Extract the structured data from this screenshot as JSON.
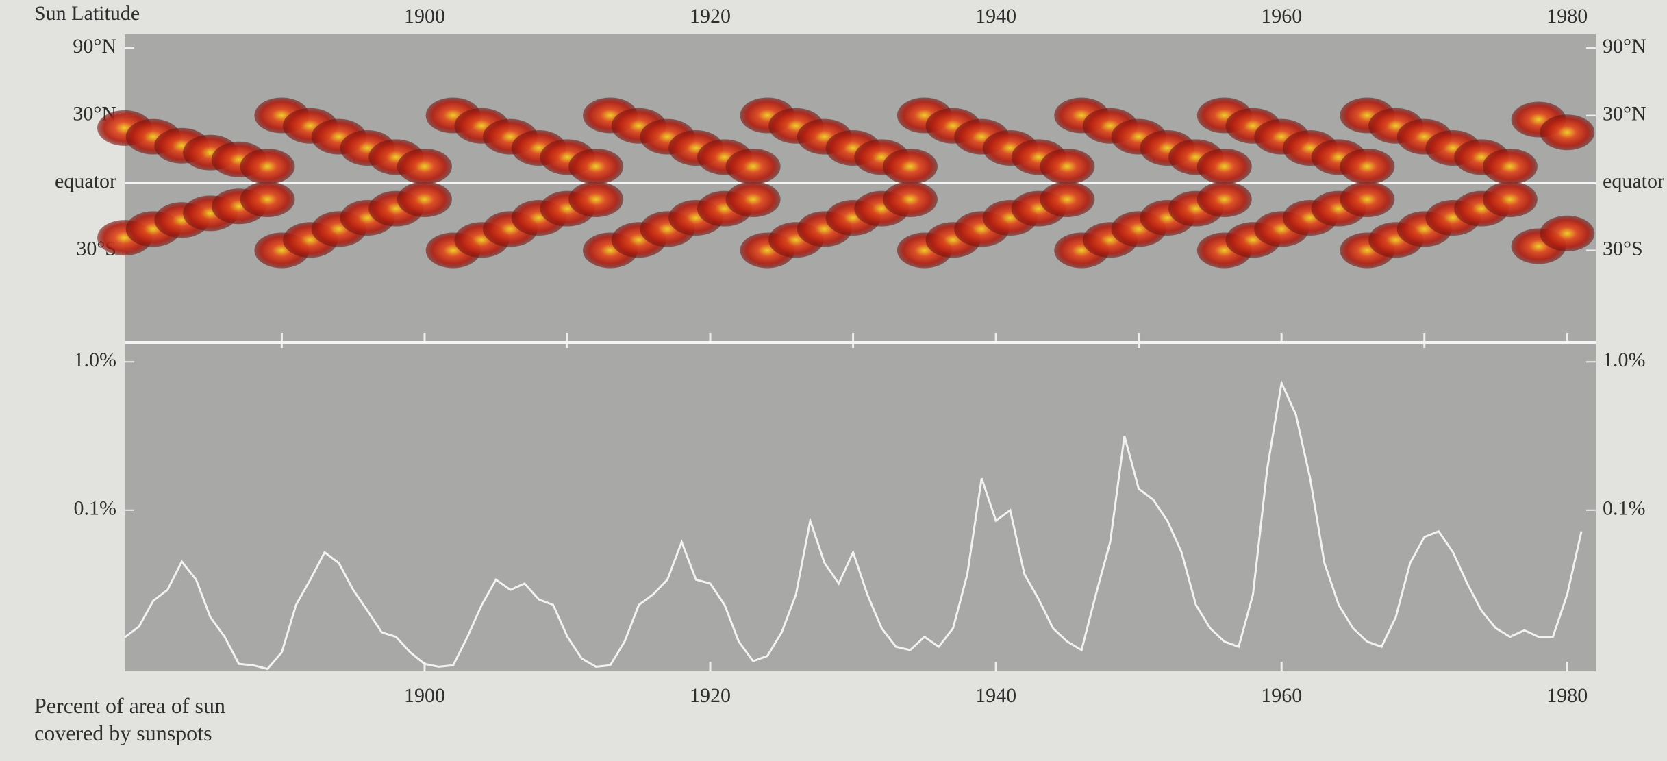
{
  "chart_data": [
    {
      "type": "scatter",
      "title": "Sun Latitude",
      "yscale": "sine",
      "color": "#c8321a",
      "xlim": [
        1879,
        1982
      ],
      "xticks": [
        1900,
        1920,
        1940,
        1960,
        1980
      ],
      "xticks_minor": [
        1890,
        1910,
        1930,
        1950,
        1970
      ],
      "ylim": [
        -90,
        90
      ],
      "yticks": [
        {
          "value": 90,
          "label": "90°N"
        },
        {
          "value": 30,
          "label": "30°N"
        },
        {
          "value": 0,
          "label": "equator"
        },
        {
          "value": -30,
          "label": "30°S"
        }
      ],
      "x": [
        1879,
        1881,
        1883,
        1885,
        1887,
        1889,
        1879,
        1881,
        1883,
        1885,
        1887,
        1889,
        1890,
        1892,
        1894,
        1896,
        1898,
        1900,
        1890,
        1892,
        1894,
        1896,
        1898,
        1900,
        1902,
        1904,
        1906,
        1908,
        1910,
        1912,
        1902,
        1904,
        1906,
        1908,
        1910,
        1912,
        1913,
        1915,
        1917,
        1919,
        1921,
        1923,
        1913,
        1915,
        1917,
        1919,
        1921,
        1923,
        1924,
        1926,
        1928,
        1930,
        1932,
        1934,
        1924,
        1926,
        1928,
        1930,
        1932,
        1934,
        1935,
        1937,
        1939,
        1941,
        1943,
        1945,
        1935,
        1937,
        1939,
        1941,
        1943,
        1945,
        1946,
        1948,
        1950,
        1952,
        1954,
        1956,
        1946,
        1948,
        1950,
        1952,
        1954,
        1956,
        1956,
        1958,
        1960,
        1962,
        1964,
        1966,
        1956,
        1958,
        1960,
        1962,
        1964,
        1966,
        1966,
        1968,
        1970,
        1972,
        1974,
        1976,
        1966,
        1968,
        1970,
        1972,
        1974,
        1976,
        1978,
        1980,
        1978,
        1980
      ],
      "y": [
        24,
        20,
        16,
        13,
        10,
        7,
        -24,
        -20,
        -16,
        -13,
        -10,
        -7,
        30,
        25,
        20,
        15,
        11,
        7,
        -30,
        -25,
        -20,
        -15,
        -11,
        -7,
        30,
        25,
        20,
        15,
        11,
        7,
        -30,
        -25,
        -20,
        -15,
        -11,
        -7,
        30,
        25,
        20,
        15,
        11,
        7,
        -30,
        -25,
        -20,
        -15,
        -11,
        -7,
        30,
        25,
        20,
        15,
        11,
        7,
        -30,
        -25,
        -20,
        -15,
        -11,
        -7,
        30,
        25,
        20,
        15,
        11,
        7,
        -30,
        -25,
        -20,
        -15,
        -11,
        -7,
        30,
        25,
        20,
        15,
        11,
        7,
        -30,
        -25,
        -20,
        -15,
        -11,
        -7,
        30,
        25,
        20,
        15,
        11,
        7,
        -30,
        -25,
        -20,
        -15,
        -11,
        -7,
        30,
        25,
        20,
        15,
        11,
        7,
        -30,
        -25,
        -20,
        -15,
        -11,
        -7,
        28,
        22,
        -28,
        -22
      ]
    },
    {
      "type": "line",
      "title": "Percent of area of sun covered by sunspots",
      "yscale": "log",
      "color": "#f2f2f2",
      "xlim": [
        1879,
        1982
      ],
      "xticks": [
        1900,
        1920,
        1940,
        1960,
        1980
      ],
      "ylim": [
        0.0082,
        1.35
      ],
      "yticks": [
        {
          "value": 1,
          "label": "1.0%"
        },
        {
          "value": 0.1,
          "label": "0.1%"
        }
      ],
      "x": [
        1879,
        1880,
        1881,
        1882,
        1883,
        1884,
        1885,
        1886,
        1887,
        1888,
        1889,
        1890,
        1891,
        1892,
        1893,
        1894,
        1895,
        1896,
        1897,
        1898,
        1899,
        1900,
        1901,
        1902,
        1903,
        1904,
        1905,
        1906,
        1907,
        1908,
        1909,
        1910,
        1911,
        1912,
        1913,
        1914,
        1915,
        1916,
        1917,
        1918,
        1919,
        1920,
        1921,
        1922,
        1923,
        1924,
        1925,
        1926,
        1927,
        1928,
        1929,
        1930,
        1931,
        1932,
        1933,
        1934,
        1935,
        1936,
        1937,
        1938,
        1939,
        1940,
        1941,
        1942,
        1943,
        1944,
        1945,
        1946,
        1947,
        1948,
        1949,
        1950,
        1951,
        1952,
        1953,
        1954,
        1955,
        1956,
        1957,
        1958,
        1959,
        1960,
        1961,
        1962,
        1963,
        1964,
        1965,
        1966,
        1967,
        1968,
        1969,
        1970,
        1971,
        1972,
        1973,
        1974,
        1975,
        1976,
        1977,
        1978,
        1979,
        1980,
        1981
      ],
      "values": [
        0.0139,
        0.0164,
        0.0245,
        0.029,
        0.045,
        0.034,
        0.019,
        0.014,
        0.0092,
        0.009,
        0.0085,
        0.011,
        0.023,
        0.034,
        0.052,
        0.044,
        0.029,
        0.021,
        0.015,
        0.014,
        0.011,
        0.0092,
        0.0088,
        0.009,
        0.014,
        0.023,
        0.034,
        0.029,
        0.032,
        0.025,
        0.023,
        0.014,
        0.01,
        0.0088,
        0.009,
        0.013,
        0.023,
        0.027,
        0.034,
        0.061,
        0.034,
        0.032,
        0.023,
        0.013,
        0.0096,
        0.0104,
        0.015,
        0.027,
        0.085,
        0.044,
        0.032,
        0.052,
        0.027,
        0.016,
        0.012,
        0.0114,
        0.014,
        0.012,
        0.016,
        0.037,
        0.164,
        0.085,
        0.1,
        0.037,
        0.025,
        0.016,
        0.013,
        0.0114,
        0.027,
        0.061,
        0.316,
        0.139,
        0.118,
        0.085,
        0.052,
        0.023,
        0.016,
        0.013,
        0.012,
        0.027,
        0.19,
        0.72,
        0.44,
        0.164,
        0.044,
        0.023,
        0.016,
        0.013,
        0.012,
        0.019,
        0.044,
        0.066,
        0.072,
        0.052,
        0.032,
        0.021,
        0.016,
        0.014,
        0.0155,
        0.014,
        0.014,
        0.027,
        0.072
      ]
    }
  ]
}
